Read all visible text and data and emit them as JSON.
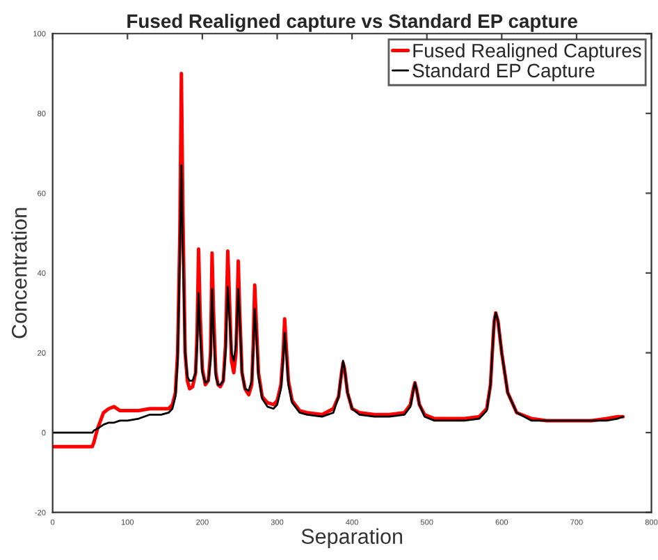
{
  "chart_data": {
    "type": "line",
    "title": "Fused Realigned capture vs Standard EP capture",
    "xlabel": "Separation",
    "ylabel": "Concentration",
    "x": [
      0,
      53,
      55,
      60,
      68,
      75,
      82,
      90,
      100,
      115,
      130,
      145,
      155,
      160,
      164,
      167,
      170,
      172,
      174,
      177,
      180,
      183,
      187,
      191,
      193,
      195,
      197,
      200,
      204,
      208,
      211,
      213,
      215,
      218,
      221,
      224,
      228,
      231,
      234,
      236,
      239,
      242,
      245,
      248,
      250,
      253,
      257,
      262,
      266,
      268,
      270,
      272,
      275,
      280,
      287,
      295,
      300,
      305,
      308,
      310,
      312,
      315,
      320,
      330,
      340,
      360,
      375,
      382,
      386,
      388,
      390,
      394,
      400,
      410,
      430,
      450,
      470,
      478,
      482,
      484,
      486,
      490,
      497,
      510,
      530,
      550,
      570,
      580,
      585,
      588,
      590,
      592,
      595,
      600,
      608,
      620,
      640,
      660,
      680,
      700,
      720,
      740,
      755,
      762
    ],
    "series": [
      {
        "name": "Fused Realigned Captures",
        "color": "#ff0000",
        "values": [
          -3.5,
          -3.5,
          -2.5,
          1,
          5,
          6,
          6.5,
          5.5,
          5.5,
          5.5,
          6,
          6,
          6,
          7,
          10,
          20,
          50,
          90,
          55,
          20,
          13,
          11,
          11.5,
          15,
          25,
          46,
          30,
          16,
          12,
          13,
          20,
          45,
          30,
          15,
          12,
          11.5,
          13,
          22,
          45.5,
          35,
          18,
          15,
          20,
          43,
          30,
          15,
          11,
          9.5,
          12,
          22,
          37,
          28,
          15,
          9,
          7.5,
          7,
          8,
          12,
          20,
          28.5,
          22,
          13,
          8,
          5.5,
          5,
          4.5,
          6,
          9,
          15,
          17.5,
          16,
          10,
          6,
          5,
          4.5,
          4.5,
          5,
          7,
          11,
          12.5,
          11,
          7,
          4.5,
          3.5,
          3.5,
          3.5,
          4,
          6,
          12,
          22,
          28,
          30,
          28,
          20,
          10,
          5,
          3.5,
          3,
          3,
          3,
          3,
          3.5,
          4,
          4
        ]
      },
      {
        "name": "Standard EP Capture",
        "color": "#000000",
        "values": [
          0,
          0,
          0.5,
          1,
          2,
          2.5,
          2.5,
          3,
          3,
          3.5,
          4.5,
          4.5,
          5,
          6,
          9,
          18,
          45,
          67,
          45,
          20,
          14,
          13,
          13,
          15,
          22,
          35,
          25,
          15,
          12.5,
          13,
          18,
          36,
          25,
          14,
          12,
          12,
          13,
          20,
          36.5,
          30,
          20,
          18,
          22,
          36,
          28,
          15,
          11,
          10.5,
          13,
          20,
          31,
          25,
          14,
          8.5,
          6.5,
          6,
          7,
          11,
          18,
          25,
          20,
          12,
          7.5,
          5,
          4.5,
          4,
          5,
          9,
          15,
          18,
          16,
          10,
          6,
          4.5,
          4,
          4,
          4.5,
          6.5,
          10.5,
          12.5,
          11,
          7,
          4,
          3,
          3,
          3,
          3.5,
          5.5,
          12,
          22,
          28,
          30,
          28,
          20,
          10,
          5,
          3,
          3,
          3,
          3,
          3,
          3,
          3.5,
          4
        ]
      }
    ],
    "xlim": [
      0,
      800
    ],
    "ylim": [
      -20,
      100
    ],
    "xticks": [
      0,
      100,
      200,
      300,
      400,
      500,
      600,
      700,
      800
    ],
    "yticks": [
      -20,
      0,
      20,
      40,
      60,
      80,
      100
    ],
    "grid": false,
    "legend": "top right"
  }
}
